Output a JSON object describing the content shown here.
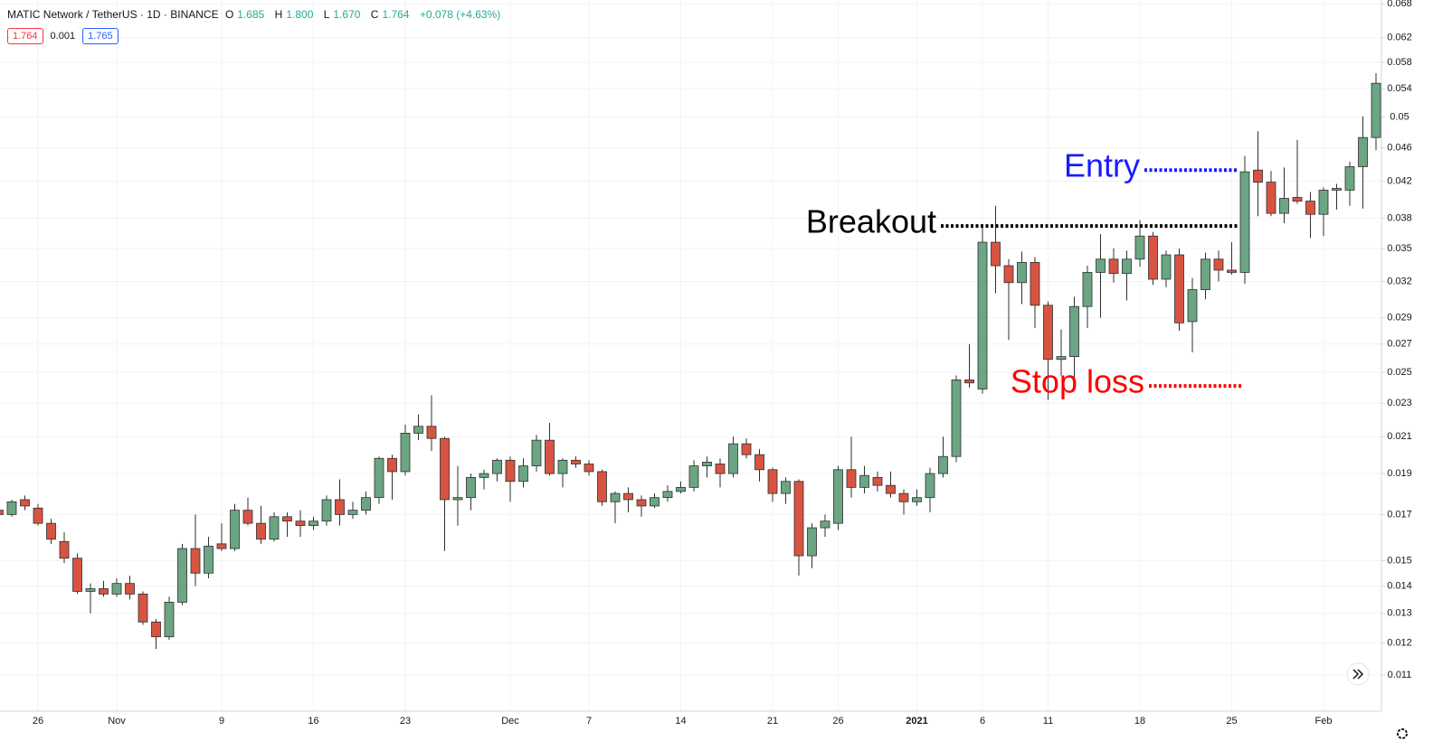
{
  "chart_data": {
    "type": "candlestick",
    "title": "MATIC Network / TetherUS · 1D · BINANCE",
    "quote": [
      [
        "O",
        "1.685"
      ],
      [
        "H",
        "1.800"
      ],
      [
        "L",
        "1.670"
      ],
      [
        "C",
        "1.764"
      ]
    ],
    "change": "+0.078 (+4.63%)",
    "bid": "1.764",
    "spread": "0.001",
    "ask": "1.765",
    "log_scale": true,
    "grid": true,
    "up_color": "#6ba583",
    "down_color": "#d75442",
    "ylim": [
      0.00997,
      0.0687
    ],
    "yticks": [
      0.068,
      0.062,
      0.058,
      0.054,
      0.05,
      0.046,
      0.042,
      0.038,
      0.035,
      0.032,
      0.029,
      0.027,
      0.025,
      0.023,
      0.021,
      0.019,
      0.017,
      0.015,
      0.014,
      0.013,
      0.012,
      0.011
    ],
    "categories": [
      null,
      null,
      null,
      "26",
      null,
      null,
      null,
      null,
      null,
      "Nov",
      null,
      null,
      null,
      null,
      null,
      null,
      null,
      "9",
      null,
      null,
      null,
      null,
      null,
      null,
      "16",
      null,
      null,
      null,
      null,
      null,
      null,
      "23",
      null,
      null,
      null,
      null,
      null,
      null,
      null,
      "Dec",
      null,
      null,
      null,
      null,
      null,
      "7",
      null,
      null,
      null,
      null,
      null,
      null,
      "14",
      null,
      null,
      null,
      null,
      null,
      null,
      "21",
      null,
      null,
      null,
      null,
      "26",
      null,
      null,
      null,
      null,
      null,
      "2021",
      null,
      null,
      null,
      null,
      "6",
      null,
      null,
      null,
      null,
      "11",
      null,
      null,
      null,
      null,
      null,
      null,
      "18",
      null,
      null,
      null,
      null,
      null,
      null,
      "25",
      null,
      null,
      null,
      null,
      null,
      null,
      "Feb",
      null,
      null,
      null,
      null
    ],
    "candles": [
      [
        0.0172,
        0.0173,
        0.0169,
        0.017
      ],
      [
        0.017,
        0.0177,
        0.0169,
        0.0176
      ],
      [
        0.0177,
        0.0179,
        0.0172,
        0.0174
      ],
      [
        0.0173,
        0.0175,
        0.0165,
        0.0166
      ],
      [
        0.0166,
        0.0168,
        0.0157,
        0.0159
      ],
      [
        0.0158,
        0.0162,
        0.0149,
        0.0151
      ],
      [
        0.0151,
        0.0153,
        0.0137,
        0.0138
      ],
      [
        0.0138,
        0.0141,
        0.013,
        0.0139
      ],
      [
        0.0139,
        0.0142,
        0.0136,
        0.0137
      ],
      [
        0.0137,
        0.0143,
        0.0136,
        0.0141
      ],
      [
        0.0141,
        0.0144,
        0.0135,
        0.0137
      ],
      [
        0.0137,
        0.0138,
        0.0126,
        0.0127
      ],
      [
        0.0127,
        0.0128,
        0.0118,
        0.0122
      ],
      [
        0.0122,
        0.0136,
        0.0121,
        0.0134
      ],
      [
        0.0134,
        0.0157,
        0.0133,
        0.0155
      ],
      [
        0.0155,
        0.017,
        0.014,
        0.0145
      ],
      [
        0.0145,
        0.016,
        0.0143,
        0.0156
      ],
      [
        0.0157,
        0.0166,
        0.0154,
        0.0155
      ],
      [
        0.0155,
        0.0175,
        0.0154,
        0.0172
      ],
      [
        0.0172,
        0.0178,
        0.0165,
        0.0166
      ],
      [
        0.0166,
        0.0174,
        0.0157,
        0.0159
      ],
      [
        0.0159,
        0.0171,
        0.0158,
        0.0169
      ],
      [
        0.0169,
        0.0171,
        0.016,
        0.0167
      ],
      [
        0.0167,
        0.0172,
        0.016,
        0.0165
      ],
      [
        0.0165,
        0.0169,
        0.0163,
        0.0167
      ],
      [
        0.0167,
        0.0179,
        0.0165,
        0.0177
      ],
      [
        0.0177,
        0.0187,
        0.0165,
        0.017
      ],
      [
        0.017,
        0.0176,
        0.0168,
        0.0172
      ],
      [
        0.0172,
        0.0181,
        0.017,
        0.0178
      ],
      [
        0.0178,
        0.0199,
        0.0175,
        0.0198
      ],
      [
        0.0198,
        0.02,
        0.0177,
        0.0191
      ],
      [
        0.0191,
        0.0217,
        0.0189,
        0.0212
      ],
      [
        0.0212,
        0.0223,
        0.0208,
        0.0216
      ],
      [
        0.0216,
        0.0235,
        0.0202,
        0.0209
      ],
      [
        0.0209,
        0.021,
        0.0154,
        0.0177
      ],
      [
        0.0177,
        0.0194,
        0.0165,
        0.0178
      ],
      [
        0.0178,
        0.019,
        0.0172,
        0.0188
      ],
      [
        0.0188,
        0.0192,
        0.0182,
        0.019
      ],
      [
        0.019,
        0.0198,
        0.0186,
        0.0197
      ],
      [
        0.0197,
        0.0199,
        0.0176,
        0.0186
      ],
      [
        0.0186,
        0.0198,
        0.0183,
        0.0194
      ],
      [
        0.0194,
        0.0211,
        0.0191,
        0.0208
      ],
      [
        0.0208,
        0.0218,
        0.0189,
        0.019
      ],
      [
        0.019,
        0.0198,
        0.0183,
        0.0197
      ],
      [
        0.0197,
        0.0199,
        0.0193,
        0.0195
      ],
      [
        0.0195,
        0.0197,
        0.0189,
        0.0191
      ],
      [
        0.0191,
        0.0192,
        0.0174,
        0.0176
      ],
      [
        0.0176,
        0.0181,
        0.0166,
        0.018
      ],
      [
        0.018,
        0.0183,
        0.0171,
        0.0177
      ],
      [
        0.0177,
        0.0179,
        0.0169,
        0.0174
      ],
      [
        0.0174,
        0.018,
        0.0173,
        0.0178
      ],
      [
        0.0178,
        0.0184,
        0.0176,
        0.0181
      ],
      [
        0.0181,
        0.0186,
        0.018,
        0.0183
      ],
      [
        0.0183,
        0.0197,
        0.0181,
        0.0194
      ],
      [
        0.0194,
        0.0199,
        0.0188,
        0.0196
      ],
      [
        0.0195,
        0.0198,
        0.0183,
        0.019
      ],
      [
        0.019,
        0.021,
        0.0188,
        0.0206
      ],
      [
        0.0206,
        0.0209,
        0.0198,
        0.02
      ],
      [
        0.02,
        0.0203,
        0.0186,
        0.0192
      ],
      [
        0.0192,
        0.0193,
        0.0176,
        0.018
      ],
      [
        0.018,
        0.0188,
        0.0175,
        0.0186
      ],
      [
        0.0186,
        0.0187,
        0.0144,
        0.0152
      ],
      [
        0.0152,
        0.0166,
        0.0147,
        0.0164
      ],
      [
        0.0164,
        0.017,
        0.016,
        0.0167
      ],
      [
        0.0166,
        0.0194,
        0.0163,
        0.0192
      ],
      [
        0.0192,
        0.021,
        0.0178,
        0.0183
      ],
      [
        0.0183,
        0.0194,
        0.018,
        0.0189
      ],
      [
        0.0188,
        0.0191,
        0.0181,
        0.0184
      ],
      [
        0.0184,
        0.0191,
        0.0178,
        0.018
      ],
      [
        0.018,
        0.0182,
        0.017,
        0.0176
      ],
      [
        0.0176,
        0.0182,
        0.0174,
        0.0178
      ],
      [
        0.0178,
        0.0193,
        0.0171,
        0.019
      ],
      [
        0.019,
        0.021,
        0.0188,
        0.0199
      ],
      [
        0.0199,
        0.0248,
        0.0196,
        0.0245
      ],
      [
        0.0245,
        0.027,
        0.024,
        0.0243
      ],
      [
        0.0239,
        0.0371,
        0.0236,
        0.0356
      ],
      [
        0.0356,
        0.0393,
        0.031,
        0.0334
      ],
      [
        0.0334,
        0.034,
        0.0273,
        0.0319
      ],
      [
        0.0319,
        0.0347,
        0.0301,
        0.0337
      ],
      [
        0.0337,
        0.0342,
        0.0282,
        0.03
      ],
      [
        0.03,
        0.0303,
        0.0232,
        0.0259
      ],
      [
        0.0259,
        0.0281,
        0.0248,
        0.0261
      ],
      [
        0.0261,
        0.0307,
        0.0245,
        0.0299
      ],
      [
        0.0299,
        0.0334,
        0.0282,
        0.0328
      ],
      [
        0.0328,
        0.0364,
        0.029,
        0.034
      ],
      [
        0.034,
        0.035,
        0.0319,
        0.0327
      ],
      [
        0.0327,
        0.0348,
        0.0304,
        0.034
      ],
      [
        0.034,
        0.0378,
        0.0333,
        0.0362
      ],
      [
        0.0362,
        0.0366,
        0.0317,
        0.0322
      ],
      [
        0.0322,
        0.0348,
        0.0315,
        0.0344
      ],
      [
        0.0344,
        0.035,
        0.028,
        0.0286
      ],
      [
        0.0287,
        0.0323,
        0.0264,
        0.0313
      ],
      [
        0.0313,
        0.0346,
        0.0305,
        0.034
      ],
      [
        0.034,
        0.0348,
        0.032,
        0.033
      ],
      [
        0.033,
        0.0356,
        0.0326,
        0.0328
      ],
      [
        0.0328,
        0.045,
        0.0318,
        0.0431
      ],
      [
        0.0433,
        0.0481,
        0.0382,
        0.0419
      ],
      [
        0.0419,
        0.0432,
        0.0382,
        0.0385
      ],
      [
        0.0385,
        0.0436,
        0.0375,
        0.0401
      ],
      [
        0.0402,
        0.047,
        0.0395,
        0.0398
      ],
      [
        0.0398,
        0.0408,
        0.036,
        0.0384
      ],
      [
        0.0384,
        0.0413,
        0.0362,
        0.041
      ],
      [
        0.041,
        0.0417,
        0.0389,
        0.0412
      ],
      [
        0.041,
        0.0443,
        0.0393,
        0.0437
      ],
      [
        0.0437,
        0.0501,
        0.039,
        0.0473
      ],
      [
        0.0473,
        0.0563,
        0.0457,
        0.0548
      ]
    ],
    "annotations": [
      {
        "text": "Entry",
        "color": "#1a1aff",
        "level": 0.0433
      },
      {
        "text": "Breakout",
        "color": "#000000",
        "level": 0.0372
      },
      {
        "text": "Stop loss",
        "color": "#ff0000",
        "level": 0.0241
      }
    ]
  }
}
